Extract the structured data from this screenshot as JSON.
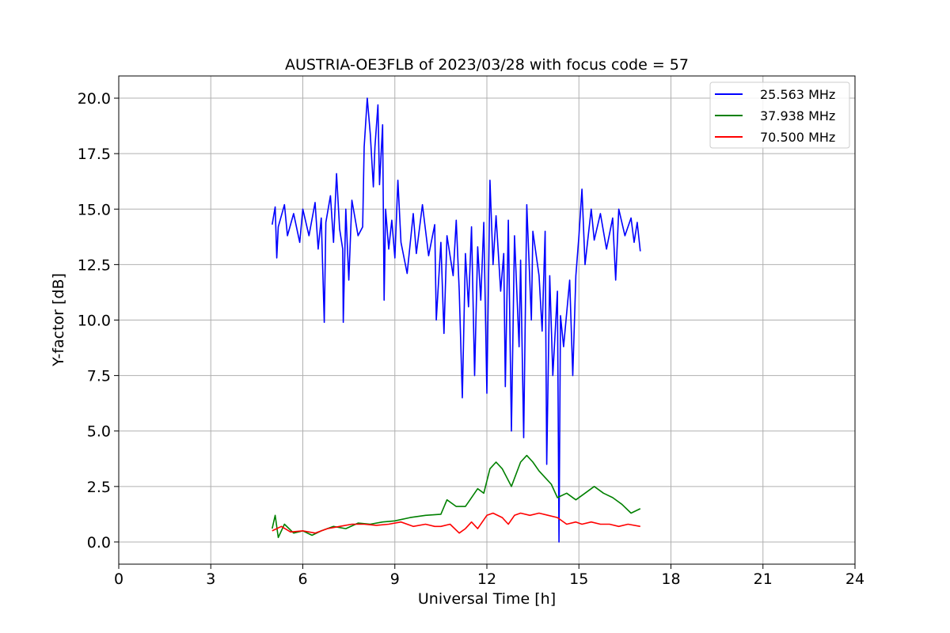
{
  "chart_data": {
    "type": "line",
    "title": "AUSTRIA-OE3FLB of 2023/03/28 with focus code = 57",
    "xlabel": "Universal Time [h]",
    "ylabel": "Y-factor [dB]",
    "xlim": [
      0,
      24
    ],
    "ylim": [
      -1.0,
      21.0
    ],
    "xticks": [
      0,
      3,
      6,
      9,
      12,
      15,
      18,
      21,
      24
    ],
    "xtick_labels": [
      "0",
      "3",
      "6",
      "9",
      "12",
      "15",
      "18",
      "21",
      "24"
    ],
    "yticks": [
      0.0,
      2.5,
      5.0,
      7.5,
      10.0,
      12.5,
      15.0,
      17.5,
      20.0
    ],
    "ytick_labels": [
      "0.0",
      "2.5",
      "5.0",
      "7.5",
      "10.0",
      "12.5",
      "15.0",
      "17.5",
      "20.0"
    ],
    "grid": true,
    "legend_position": "top-right",
    "series": [
      {
        "name": "25.563 MHz",
        "color": "#0000ff",
        "points": [
          [
            5.0,
            14.3
          ],
          [
            5.1,
            15.1
          ],
          [
            5.15,
            12.8
          ],
          [
            5.2,
            14.2
          ],
          [
            5.4,
            15.2
          ],
          [
            5.5,
            13.8
          ],
          [
            5.7,
            14.8
          ],
          [
            5.9,
            13.5
          ],
          [
            6.0,
            15.0
          ],
          [
            6.2,
            13.8
          ],
          [
            6.4,
            15.3
          ],
          [
            6.5,
            13.2
          ],
          [
            6.6,
            14.6
          ],
          [
            6.7,
            9.9
          ],
          [
            6.75,
            14.4
          ],
          [
            6.9,
            15.6
          ],
          [
            7.0,
            13.5
          ],
          [
            7.1,
            16.6
          ],
          [
            7.2,
            14.1
          ],
          [
            7.3,
            13.2
          ],
          [
            7.32,
            9.9
          ],
          [
            7.4,
            15.0
          ],
          [
            7.5,
            11.8
          ],
          [
            7.6,
            15.4
          ],
          [
            7.8,
            13.8
          ],
          [
            7.95,
            14.2
          ],
          [
            8.0,
            17.8
          ],
          [
            8.1,
            20.0
          ],
          [
            8.2,
            18.4
          ],
          [
            8.3,
            16.0
          ],
          [
            8.35,
            17.8
          ],
          [
            8.45,
            19.7
          ],
          [
            8.5,
            16.1
          ],
          [
            8.6,
            18.8
          ],
          [
            8.65,
            10.9
          ],
          [
            8.7,
            15.0
          ],
          [
            8.8,
            13.2
          ],
          [
            8.9,
            14.5
          ],
          [
            9.0,
            12.8
          ],
          [
            9.1,
            16.3
          ],
          [
            9.2,
            13.5
          ],
          [
            9.4,
            12.1
          ],
          [
            9.6,
            14.8
          ],
          [
            9.7,
            13.0
          ],
          [
            9.9,
            15.2
          ],
          [
            10.1,
            12.9
          ],
          [
            10.3,
            14.3
          ],
          [
            10.35,
            10.0
          ],
          [
            10.5,
            13.5
          ],
          [
            10.6,
            9.4
          ],
          [
            10.7,
            13.8
          ],
          [
            10.9,
            12.0
          ],
          [
            11.0,
            14.5
          ],
          [
            11.1,
            11.3
          ],
          [
            11.2,
            6.5
          ],
          [
            11.3,
            13.0
          ],
          [
            11.4,
            10.6
          ],
          [
            11.5,
            14.2
          ],
          [
            11.6,
            7.5
          ],
          [
            11.7,
            13.3
          ],
          [
            11.8,
            10.9
          ],
          [
            11.9,
            14.4
          ],
          [
            12.0,
            6.7
          ],
          [
            12.1,
            16.3
          ],
          [
            12.2,
            12.5
          ],
          [
            12.3,
            14.7
          ],
          [
            12.45,
            11.3
          ],
          [
            12.55,
            13.0
          ],
          [
            12.6,
            7.0
          ],
          [
            12.7,
            14.5
          ],
          [
            12.8,
            5.0
          ],
          [
            12.9,
            13.8
          ],
          [
            13.05,
            8.8
          ],
          [
            13.1,
            12.7
          ],
          [
            13.2,
            4.7
          ],
          [
            13.3,
            15.2
          ],
          [
            13.45,
            10.0
          ],
          [
            13.5,
            14.0
          ],
          [
            13.7,
            12.0
          ],
          [
            13.8,
            9.5
          ],
          [
            13.9,
            14.0
          ],
          [
            13.95,
            3.5
          ],
          [
            14.05,
            12.0
          ],
          [
            14.15,
            7.5
          ],
          [
            14.3,
            11.3
          ],
          [
            14.35,
            0.0
          ],
          [
            14.4,
            10.2
          ],
          [
            14.5,
            8.8
          ],
          [
            14.7,
            11.8
          ],
          [
            14.8,
            7.5
          ],
          [
            14.9,
            12.0
          ],
          [
            15.0,
            13.8
          ],
          [
            15.1,
            15.9
          ],
          [
            15.2,
            12.5
          ],
          [
            15.4,
            15.0
          ],
          [
            15.5,
            13.6
          ],
          [
            15.7,
            14.8
          ],
          [
            15.9,
            13.2
          ],
          [
            16.1,
            14.6
          ],
          [
            16.2,
            11.8
          ],
          [
            16.3,
            15.0
          ],
          [
            16.5,
            13.8
          ],
          [
            16.7,
            14.6
          ],
          [
            16.8,
            13.5
          ],
          [
            16.9,
            14.4
          ],
          [
            17.0,
            13.1
          ]
        ]
      },
      {
        "name": "37.938 MHz",
        "color": "#008000",
        "points": [
          [
            5.0,
            0.6
          ],
          [
            5.1,
            1.2
          ],
          [
            5.2,
            0.2
          ],
          [
            5.4,
            0.8
          ],
          [
            5.7,
            0.4
          ],
          [
            6.0,
            0.5
          ],
          [
            6.3,
            0.3
          ],
          [
            6.6,
            0.5
          ],
          [
            7.0,
            0.7
          ],
          [
            7.4,
            0.6
          ],
          [
            7.8,
            0.85
          ],
          [
            8.2,
            0.8
          ],
          [
            8.6,
            0.9
          ],
          [
            9.0,
            0.95
          ],
          [
            9.5,
            1.1
          ],
          [
            10.0,
            1.2
          ],
          [
            10.5,
            1.25
          ],
          [
            10.7,
            1.9
          ],
          [
            11.0,
            1.6
          ],
          [
            11.3,
            1.6
          ],
          [
            11.5,
            2.0
          ],
          [
            11.7,
            2.4
          ],
          [
            11.9,
            2.2
          ],
          [
            12.1,
            3.3
          ],
          [
            12.3,
            3.6
          ],
          [
            12.5,
            3.3
          ],
          [
            12.8,
            2.5
          ],
          [
            13.1,
            3.6
          ],
          [
            13.3,
            3.9
          ],
          [
            13.5,
            3.6
          ],
          [
            13.7,
            3.2
          ],
          [
            13.9,
            2.9
          ],
          [
            14.1,
            2.6
          ],
          [
            14.3,
            2.0
          ],
          [
            14.6,
            2.2
          ],
          [
            14.9,
            1.9
          ],
          [
            15.2,
            2.2
          ],
          [
            15.5,
            2.5
          ],
          [
            15.8,
            2.2
          ],
          [
            16.1,
            2.0
          ],
          [
            16.4,
            1.7
          ],
          [
            16.7,
            1.3
          ],
          [
            17.0,
            1.5
          ]
        ]
      },
      {
        "name": "70.500 MHz",
        "color": "#ff0000",
        "points": [
          [
            5.0,
            0.5
          ],
          [
            5.3,
            0.7
          ],
          [
            5.6,
            0.45
          ],
          [
            6.0,
            0.5
          ],
          [
            6.4,
            0.4
          ],
          [
            6.8,
            0.6
          ],
          [
            7.2,
            0.7
          ],
          [
            7.6,
            0.8
          ],
          [
            8.0,
            0.8
          ],
          [
            8.4,
            0.75
          ],
          [
            8.8,
            0.8
          ],
          [
            9.2,
            0.9
          ],
          [
            9.6,
            0.7
          ],
          [
            10.0,
            0.8
          ],
          [
            10.3,
            0.7
          ],
          [
            10.5,
            0.7
          ],
          [
            10.8,
            0.8
          ],
          [
            11.1,
            0.4
          ],
          [
            11.3,
            0.6
          ],
          [
            11.5,
            0.9
          ],
          [
            11.7,
            0.6
          ],
          [
            12.0,
            1.2
          ],
          [
            12.2,
            1.3
          ],
          [
            12.5,
            1.1
          ],
          [
            12.7,
            0.8
          ],
          [
            12.9,
            1.2
          ],
          [
            13.1,
            1.3
          ],
          [
            13.4,
            1.2
          ],
          [
            13.7,
            1.3
          ],
          [
            14.0,
            1.2
          ],
          [
            14.3,
            1.1
          ],
          [
            14.6,
            0.8
          ],
          [
            14.9,
            0.9
          ],
          [
            15.1,
            0.8
          ],
          [
            15.4,
            0.9
          ],
          [
            15.7,
            0.8
          ],
          [
            16.0,
            0.8
          ],
          [
            16.3,
            0.7
          ],
          [
            16.6,
            0.8
          ],
          [
            17.0,
            0.7
          ]
        ]
      }
    ]
  }
}
